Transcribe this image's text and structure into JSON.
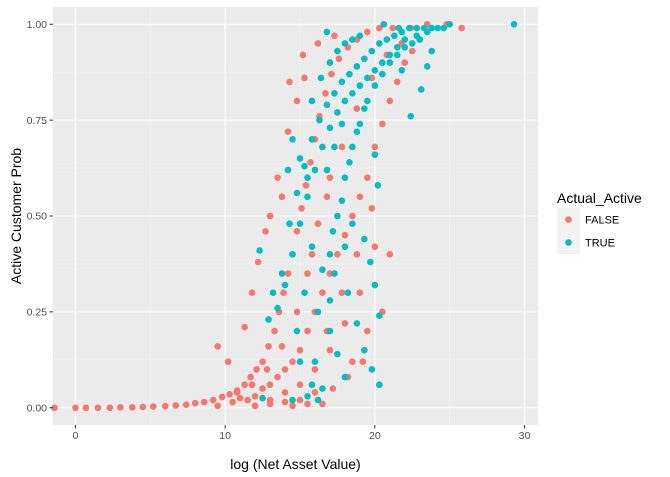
{
  "chart_data": {
    "type": "scatter",
    "title": "",
    "xlabel": "log (Net Asset Value)",
    "ylabel": "Active Customer Prob",
    "xlim": [
      -1.5,
      30.9
    ],
    "ylim": [
      -0.045,
      1.045
    ],
    "x_ticks": [
      0,
      10,
      20,
      30
    ],
    "x_minor_ticks": [
      5,
      15,
      25
    ],
    "y_ticks": [
      0.0,
      0.25,
      0.5,
      0.75,
      1.0
    ],
    "y_tick_labels": [
      "0.00",
      "0.25",
      "0.50",
      "0.75",
      "1.00"
    ],
    "y_minor_ticks": [
      0.125,
      0.375,
      0.625,
      0.875
    ],
    "x_tick_labels": [
      "0",
      "10",
      "20",
      "30"
    ],
    "grid": true,
    "panel_background": "#ebebeb",
    "grid_color": "#ffffff",
    "legend": {
      "title": "Actual_Active",
      "placement": "right",
      "entries": [
        {
          "label": "FALSE",
          "color": "#F8766D"
        },
        {
          "label": "TRUE",
          "color": "#00BFC4"
        }
      ]
    },
    "series": [
      {
        "name": "FALSE",
        "color": "#F8766D",
        "points": [
          [
            -1.4,
            0.0
          ],
          [
            0.0,
            0.0
          ],
          [
            0.7,
            0.0
          ],
          [
            1.5,
            0.0
          ],
          [
            2.3,
            0.0
          ],
          [
            3.0,
            0.001
          ],
          [
            3.8,
            0.001
          ],
          [
            4.5,
            0.002
          ],
          [
            5.2,
            0.003
          ],
          [
            6.0,
            0.004
          ],
          [
            6.7,
            0.006
          ],
          [
            7.4,
            0.008
          ],
          [
            8.0,
            0.012
          ],
          [
            8.6,
            0.015
          ],
          [
            9.2,
            0.02
          ],
          [
            9.8,
            0.028
          ],
          [
            10.3,
            0.035
          ],
          [
            10.8,
            0.045
          ],
          [
            11.3,
            0.06
          ],
          [
            11.7,
            0.08
          ],
          [
            12.1,
            0.1
          ],
          [
            12.5,
            0.12
          ],
          [
            12.9,
            0.16
          ],
          [
            13.3,
            0.2
          ],
          [
            13.6,
            0.25
          ],
          [
            13.9,
            0.3
          ],
          [
            14.2,
            0.35
          ],
          [
            14.5,
            0.4
          ],
          [
            14.8,
            0.46
          ],
          [
            15.1,
            0.52
          ],
          [
            15.4,
            0.58
          ],
          [
            15.7,
            0.64
          ],
          [
            16.0,
            0.7
          ],
          [
            16.3,
            0.76
          ],
          [
            16.7,
            0.82
          ],
          [
            17.1,
            0.87
          ],
          [
            17.6,
            0.91
          ],
          [
            18.2,
            0.94
          ],
          [
            18.8,
            0.96
          ],
          [
            19.5,
            0.98
          ],
          [
            20.3,
            0.99
          ],
          [
            21.2,
            0.99
          ],
          [
            22.4,
            0.99
          ],
          [
            23.5,
            1.0
          ],
          [
            24.8,
            1.0
          ],
          [
            25.8,
            0.99
          ],
          [
            9.5,
            0.005
          ],
          [
            10.5,
            0.015
          ],
          [
            11.0,
            0.025
          ],
          [
            11.5,
            0.02
          ],
          [
            12.0,
            0.03
          ],
          [
            12.5,
            0.05
          ],
          [
            13.0,
            0.06
          ],
          [
            13.5,
            0.08
          ],
          [
            14.0,
            0.1
          ],
          [
            14.5,
            0.12
          ],
          [
            15.0,
            0.15
          ],
          [
            15.5,
            0.2
          ],
          [
            16.0,
            0.25
          ],
          [
            16.5,
            0.3
          ],
          [
            17.0,
            0.35
          ],
          [
            17.5,
            0.4
          ],
          [
            18.0,
            0.45
          ],
          [
            18.5,
            0.5
          ],
          [
            19.0,
            0.55
          ],
          [
            19.5,
            0.6
          ],
          [
            20.0,
            0.68
          ],
          [
            20.5,
            0.74
          ],
          [
            21.0,
            0.8
          ],
          [
            21.5,
            0.85
          ],
          [
            22.0,
            0.9
          ],
          [
            22.5,
            0.93
          ],
          [
            23.0,
            0.96
          ],
          [
            13.0,
            0.02
          ],
          [
            14.0,
            0.04
          ],
          [
            15.0,
            0.06
          ],
          [
            16.0,
            0.1
          ],
          [
            17.0,
            0.15
          ],
          [
            18.0,
            0.22
          ],
          [
            19.0,
            0.3
          ],
          [
            20.0,
            0.42
          ],
          [
            16.5,
            0.01
          ],
          [
            15.5,
            0.01
          ],
          [
            14.5,
            0.005
          ],
          [
            9.5,
            0.16
          ],
          [
            10.2,
            0.12
          ],
          [
            11.8,
            0.3
          ],
          [
            12.7,
            0.46
          ],
          [
            13.5,
            0.6
          ],
          [
            14.2,
            0.72
          ],
          [
            14.8,
            0.8
          ],
          [
            15.3,
            0.86
          ],
          [
            11.3,
            0.21
          ],
          [
            12.2,
            0.38
          ],
          [
            13.0,
            0.5
          ],
          [
            13.8,
            0.55
          ],
          [
            14.3,
            0.85
          ],
          [
            15.2,
            0.92
          ],
          [
            16.2,
            0.95
          ],
          [
            17.3,
            0.97
          ],
          [
            19.8,
            0.52
          ],
          [
            18.8,
            0.4
          ],
          [
            17.8,
            0.3
          ],
          [
            16.8,
            0.2
          ],
          [
            19.2,
            0.12
          ],
          [
            18.2,
            0.08
          ],
          [
            17.2,
            0.05
          ],
          [
            20.5,
            0.25
          ],
          [
            21.0,
            0.4
          ],
          [
            15.8,
            0.4
          ],
          [
            16.8,
            0.55
          ],
          [
            17.8,
            0.68
          ],
          [
            18.8,
            0.78
          ],
          [
            19.8,
            0.86
          ],
          [
            20.8,
            0.92
          ],
          [
            21.8,
            0.95
          ],
          [
            12.0,
            0.005
          ],
          [
            13.0,
            0.01
          ],
          [
            14.0,
            0.015
          ],
          [
            15.0,
            0.02
          ],
          [
            16.0,
            0.04
          ],
          [
            14.8,
            0.25
          ],
          [
            15.5,
            0.35
          ],
          [
            16.2,
            0.48
          ],
          [
            17.0,
            0.6
          ],
          [
            13.8,
            0.16
          ],
          [
            12.8,
            0.1
          ],
          [
            11.8,
            0.06
          ],
          [
            10.8,
            0.04
          ],
          [
            18.5,
            0.12
          ],
          [
            19.5,
            0.2
          ]
        ]
      },
      {
        "name": "TRUE",
        "color": "#00BFC4",
        "points": [
          [
            29.3,
            1.0
          ],
          [
            25.0,
            1.0
          ],
          [
            24.2,
            0.99
          ],
          [
            23.5,
            0.98
          ],
          [
            22.8,
            0.97
          ],
          [
            22.0,
            0.96
          ],
          [
            21.5,
            0.94
          ],
          [
            21.0,
            0.92
          ],
          [
            20.5,
            0.9
          ],
          [
            20.0,
            0.88
          ],
          [
            19.5,
            0.86
          ],
          [
            19.0,
            0.84
          ],
          [
            18.5,
            0.82
          ],
          [
            18.0,
            0.8
          ],
          [
            17.5,
            0.77
          ],
          [
            17.0,
            0.73
          ],
          [
            16.5,
            0.68
          ],
          [
            16.0,
            0.62
          ],
          [
            15.5,
            0.55
          ],
          [
            15.0,
            0.48
          ],
          [
            14.5,
            0.4
          ],
          [
            14.0,
            0.32
          ],
          [
            13.5,
            0.26
          ],
          [
            13.2,
            0.3
          ],
          [
            12.3,
            0.41
          ],
          [
            12.9,
            0.23
          ],
          [
            13.8,
            0.35
          ],
          [
            14.3,
            0.48
          ],
          [
            14.8,
            0.56
          ],
          [
            15.3,
            0.63
          ],
          [
            15.8,
            0.7
          ],
          [
            16.3,
            0.75
          ],
          [
            16.8,
            0.79
          ],
          [
            17.3,
            0.82
          ],
          [
            17.8,
            0.85
          ],
          [
            18.3,
            0.87
          ],
          [
            18.8,
            0.89
          ],
          [
            19.3,
            0.91
          ],
          [
            19.8,
            0.93
          ],
          [
            20.3,
            0.95
          ],
          [
            20.8,
            0.96
          ],
          [
            21.3,
            0.97
          ],
          [
            21.8,
            0.98
          ],
          [
            22.3,
            0.99
          ],
          [
            22.8,
            0.99
          ],
          [
            23.3,
            0.99
          ],
          [
            23.8,
            0.99
          ],
          [
            17.0,
            0.4
          ],
          [
            17.5,
            0.5
          ],
          [
            18.0,
            0.6
          ],
          [
            18.5,
            0.68
          ],
          [
            19.0,
            0.74
          ],
          [
            19.5,
            0.8
          ],
          [
            20.0,
            0.84
          ],
          [
            20.5,
            0.87
          ],
          [
            21.0,
            0.9
          ],
          [
            21.5,
            0.92
          ],
          [
            22.0,
            0.94
          ],
          [
            22.5,
            0.95
          ],
          [
            23.0,
            0.96
          ],
          [
            20.2,
            0.58
          ],
          [
            20.0,
            0.66
          ],
          [
            21.8,
            0.88
          ],
          [
            23.1,
            0.83
          ],
          [
            23.5,
            0.89
          ],
          [
            23.8,
            0.93
          ],
          [
            22.4,
            0.76
          ],
          [
            18.2,
            0.3
          ],
          [
            18.8,
            0.22
          ],
          [
            19.3,
            0.15
          ],
          [
            19.8,
            0.1
          ],
          [
            20.3,
            0.06
          ],
          [
            17.0,
            0.2
          ],
          [
            17.5,
            0.14
          ],
          [
            18.0,
            0.08
          ],
          [
            16.5,
            0.05
          ],
          [
            16.2,
            0.02
          ],
          [
            15.8,
            0.06
          ],
          [
            16.0,
            0.12
          ],
          [
            17.0,
            0.28
          ],
          [
            20.3,
            0.24
          ],
          [
            20.0,
            0.32
          ],
          [
            16.5,
            0.36
          ],
          [
            17.2,
            0.46
          ],
          [
            17.8,
            0.54
          ],
          [
            18.3,
            0.64
          ],
          [
            18.8,
            0.72
          ],
          [
            19.3,
            0.78
          ],
          [
            15.5,
            0.6
          ],
          [
            15.0,
            0.65
          ],
          [
            15.8,
            0.8
          ],
          [
            16.4,
            0.86
          ],
          [
            17.0,
            0.9
          ],
          [
            17.5,
            0.93
          ],
          [
            18.0,
            0.95
          ],
          [
            18.5,
            0.96
          ],
          [
            19.0,
            0.97
          ],
          [
            16.8,
            0.62
          ],
          [
            17.3,
            0.68
          ],
          [
            17.8,
            0.74
          ],
          [
            14.5,
            0.7
          ],
          [
            14.2,
            0.62
          ],
          [
            19.3,
            0.44
          ],
          [
            19.7,
            0.38
          ],
          [
            18.5,
            0.48
          ],
          [
            18.0,
            0.42
          ],
          [
            16.8,
            0.98
          ],
          [
            20.6,
            1.0
          ],
          [
            21.6,
            0.99
          ],
          [
            24.6,
            0.99
          ],
          [
            12.5,
            0.025
          ],
          [
            14.5,
            0.02
          ],
          [
            15.5,
            0.03
          ],
          [
            15.0,
            0.12
          ],
          [
            16.2,
            0.25
          ],
          [
            17.3,
            0.35
          ],
          [
            14.8,
            0.2
          ],
          [
            15.3,
            0.3
          ],
          [
            15.8,
            0.42
          ]
        ]
      }
    ]
  }
}
